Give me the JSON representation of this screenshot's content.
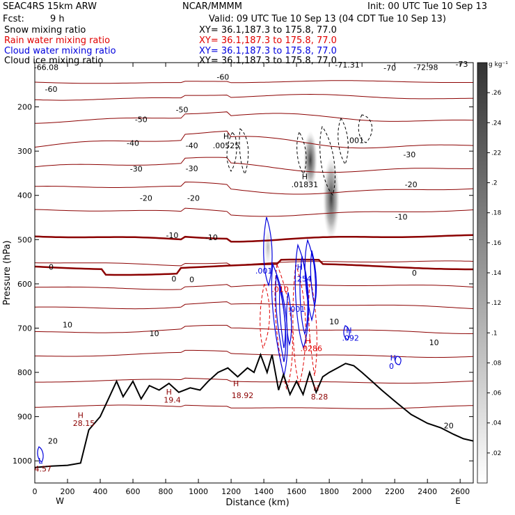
{
  "header": {
    "model": "SEAC4RS 15km ARW",
    "org": "NCAR/MMMM",
    "init": "Init: 00 UTC Tue 10 Sep 13",
    "fcst_label": "Fcst:",
    "fcst_value": "9 h",
    "valid": "Valid: 09 UTC Tue 10 Sep 13 (04 CDT Tue 10 Sep 13)"
  },
  "fields": [
    {
      "name": "Snow mixing ratio",
      "xy": "XY= 36.1,187.3 to 175.8, 77.0",
      "color": "#000000"
    },
    {
      "name": "Rain water mixing ratio",
      "xy": "XY= 36.1,187.3 to 175.8, 77.0",
      "color": "#e00000"
    },
    {
      "name": "Cloud water mixing ratio",
      "xy": "XY= 36.1,187.3 to 175.8, 77.0",
      "color": "#0000dd"
    },
    {
      "name": "Cloud ice mixing ratio",
      "xy": "XY= 36.1,187.3 to 175.8, 77.0",
      "color": "#000000"
    }
  ],
  "chart_data": {
    "type": "contour",
    "xlabel": "Distance (km)",
    "ylabel": "Pressure (hPa)",
    "xlim": [
      0,
      2680
    ],
    "ylim": [
      1050,
      100
    ],
    "xticks": [
      0,
      200,
      400,
      600,
      800,
      1000,
      1200,
      1400,
      1600,
      1800,
      2000,
      2200,
      2400,
      2600
    ],
    "yticks": [
      200,
      300,
      400,
      500,
      600,
      700,
      800,
      900,
      1000
    ],
    "xtick_labels_extra": {
      "west": "W",
      "east": "E"
    },
    "colorbar": {
      "unit": "g kg⁻¹",
      "ticks": [
        0.02,
        0.04,
        0.06,
        0.08,
        0.1,
        0.12,
        0.14,
        0.16,
        0.18,
        0.2,
        0.22,
        0.24,
        0.26
      ],
      "tick_labels": [
        ".02",
        ".04",
        ".06",
        ".08",
        ".1",
        ".12",
        ".14",
        ".16",
        ".18",
        ".2",
        ".22",
        ".24",
        ".26"
      ],
      "range": [
        0,
        0.28
      ]
    },
    "temperature_labels": [
      {
        "text": "-66.08",
        "x": 70,
        "p": 110
      },
      {
        "text": "-71.31",
        "x": 1910,
        "p": 105
      },
      {
        "text": "-70",
        "x": 2170,
        "p": 112
      },
      {
        "text": "-72.98",
        "x": 2390,
        "p": 110
      },
      {
        "text": "-73",
        "x": 2610,
        "p": 103
      },
      {
        "text": "-60",
        "x": 100,
        "p": 160
      },
      {
        "text": "-60",
        "x": 1150,
        "p": 132
      },
      {
        "text": "-50",
        "x": 650,
        "p": 228
      },
      {
        "text": "-50",
        "x": 900,
        "p": 206
      },
      {
        "text": "-40",
        "x": 600,
        "p": 282
      },
      {
        "text": "-40",
        "x": 960,
        "p": 287
      },
      {
        "text": "-30",
        "x": 620,
        "p": 340
      },
      {
        "text": "-30",
        "x": 960,
        "p": 339
      },
      {
        "text": "-30",
        "x": 2290,
        "p": 308
      },
      {
        "text": "-20",
        "x": 680,
        "p": 406
      },
      {
        "text": "-20",
        "x": 970,
        "p": 406
      },
      {
        "text": "-20",
        "x": 2300,
        "p": 375
      },
      {
        "text": "-10",
        "x": 840,
        "p": 490
      },
      {
        "text": "-10",
        "x": 1080,
        "p": 495
      },
      {
        "text": "-10",
        "x": 2240,
        "p": 448
      },
      {
        "text": "0",
        "x": 100,
        "p": 562
      },
      {
        "text": "0",
        "x": 850,
        "p": 588
      },
      {
        "text": "0",
        "x": 960,
        "p": 590
      },
      {
        "text": "0",
        "x": 2320,
        "p": 575
      },
      {
        "text": "10",
        "x": 200,
        "p": 692
      },
      {
        "text": "10",
        "x": 730,
        "p": 712
      },
      {
        "text": "10",
        "x": 1830,
        "p": 685
      },
      {
        "text": "10",
        "x": 2440,
        "p": 732
      },
      {
        "text": "20",
        "x": 110,
        "p": 955
      },
      {
        "text": "20",
        "x": 2530,
        "p": 920
      }
    ],
    "max_labels": [
      {
        "text": "H",
        "x": 1170,
        "p": 266,
        "color": "#000000"
      },
      {
        "text": ".00525",
        "x": 1170,
        "p": 287,
        "color": "#000000"
      },
      {
        "text": "H",
        "x": 1650,
        "p": 357,
        "color": "#000000"
      },
      {
        "text": ".01831",
        "x": 1650,
        "p": 375,
        "color": "#000000"
      },
      {
        "text": ".001",
        "x": 1960,
        "p": 275,
        "color": "#000000"
      },
      {
        "text": ".001",
        "x": 1400,
        "p": 570,
        "color": "#0000dd"
      },
      {
        "text": "H",
        "x": 1620,
        "p": 562,
        "color": "#0000dd"
      },
      {
        "text": ".254",
        "x": 1640,
        "p": 588,
        "color": "#0000dd"
      },
      {
        "text": ".010",
        "x": 1500,
        "p": 612,
        "color": "#e00000"
      },
      {
        "text": ".001",
        "x": 1600,
        "p": 657,
        "color": "#0000dd"
      },
      {
        "text": "H",
        "x": 1670,
        "p": 728,
        "color": "#e00000"
      },
      {
        "text": ".0286",
        "x": 1690,
        "p": 746,
        "color": "#e00000"
      },
      {
        "text": "H",
        "x": 1920,
        "p": 705,
        "color": "#0000dd"
      },
      {
        "text": ".092",
        "x": 1930,
        "p": 722,
        "color": "#0000dd"
      },
      {
        "text": "H",
        "x": 2190,
        "p": 767,
        "color": "#0000dd"
      },
      {
        "text": "0",
        "x": 2180,
        "p": 786,
        "color": "#0000dd"
      },
      {
        "text": "H",
        "x": 820,
        "p": 844,
        "color": "#8b0000"
      },
      {
        "text": "19.4",
        "x": 840,
        "p": 862,
        "color": "#8b0000"
      },
      {
        "text": "H",
        "x": 1230,
        "p": 825,
        "color": "#8b0000"
      },
      {
        "text": "18.92",
        "x": 1270,
        "p": 852,
        "color": "#8b0000"
      },
      {
        "text": "H",
        "x": 1720,
        "p": 835,
        "color": "#8b0000"
      },
      {
        "text": "8.28",
        "x": 1740,
        "p": 855,
        "color": "#8b0000"
      },
      {
        "text": "H",
        "x": 280,
        "p": 897,
        "color": "#8b0000"
      },
      {
        "text": "28.15",
        "x": 300,
        "p": 915,
        "color": "#8b0000"
      },
      {
        "text": "L",
        "x": 35,
        "p": 1000,
        "color": "#0000dd"
      },
      {
        "text": "4.57",
        "x": 50,
        "p": 1018,
        "color": "#8b0000"
      }
    ]
  }
}
